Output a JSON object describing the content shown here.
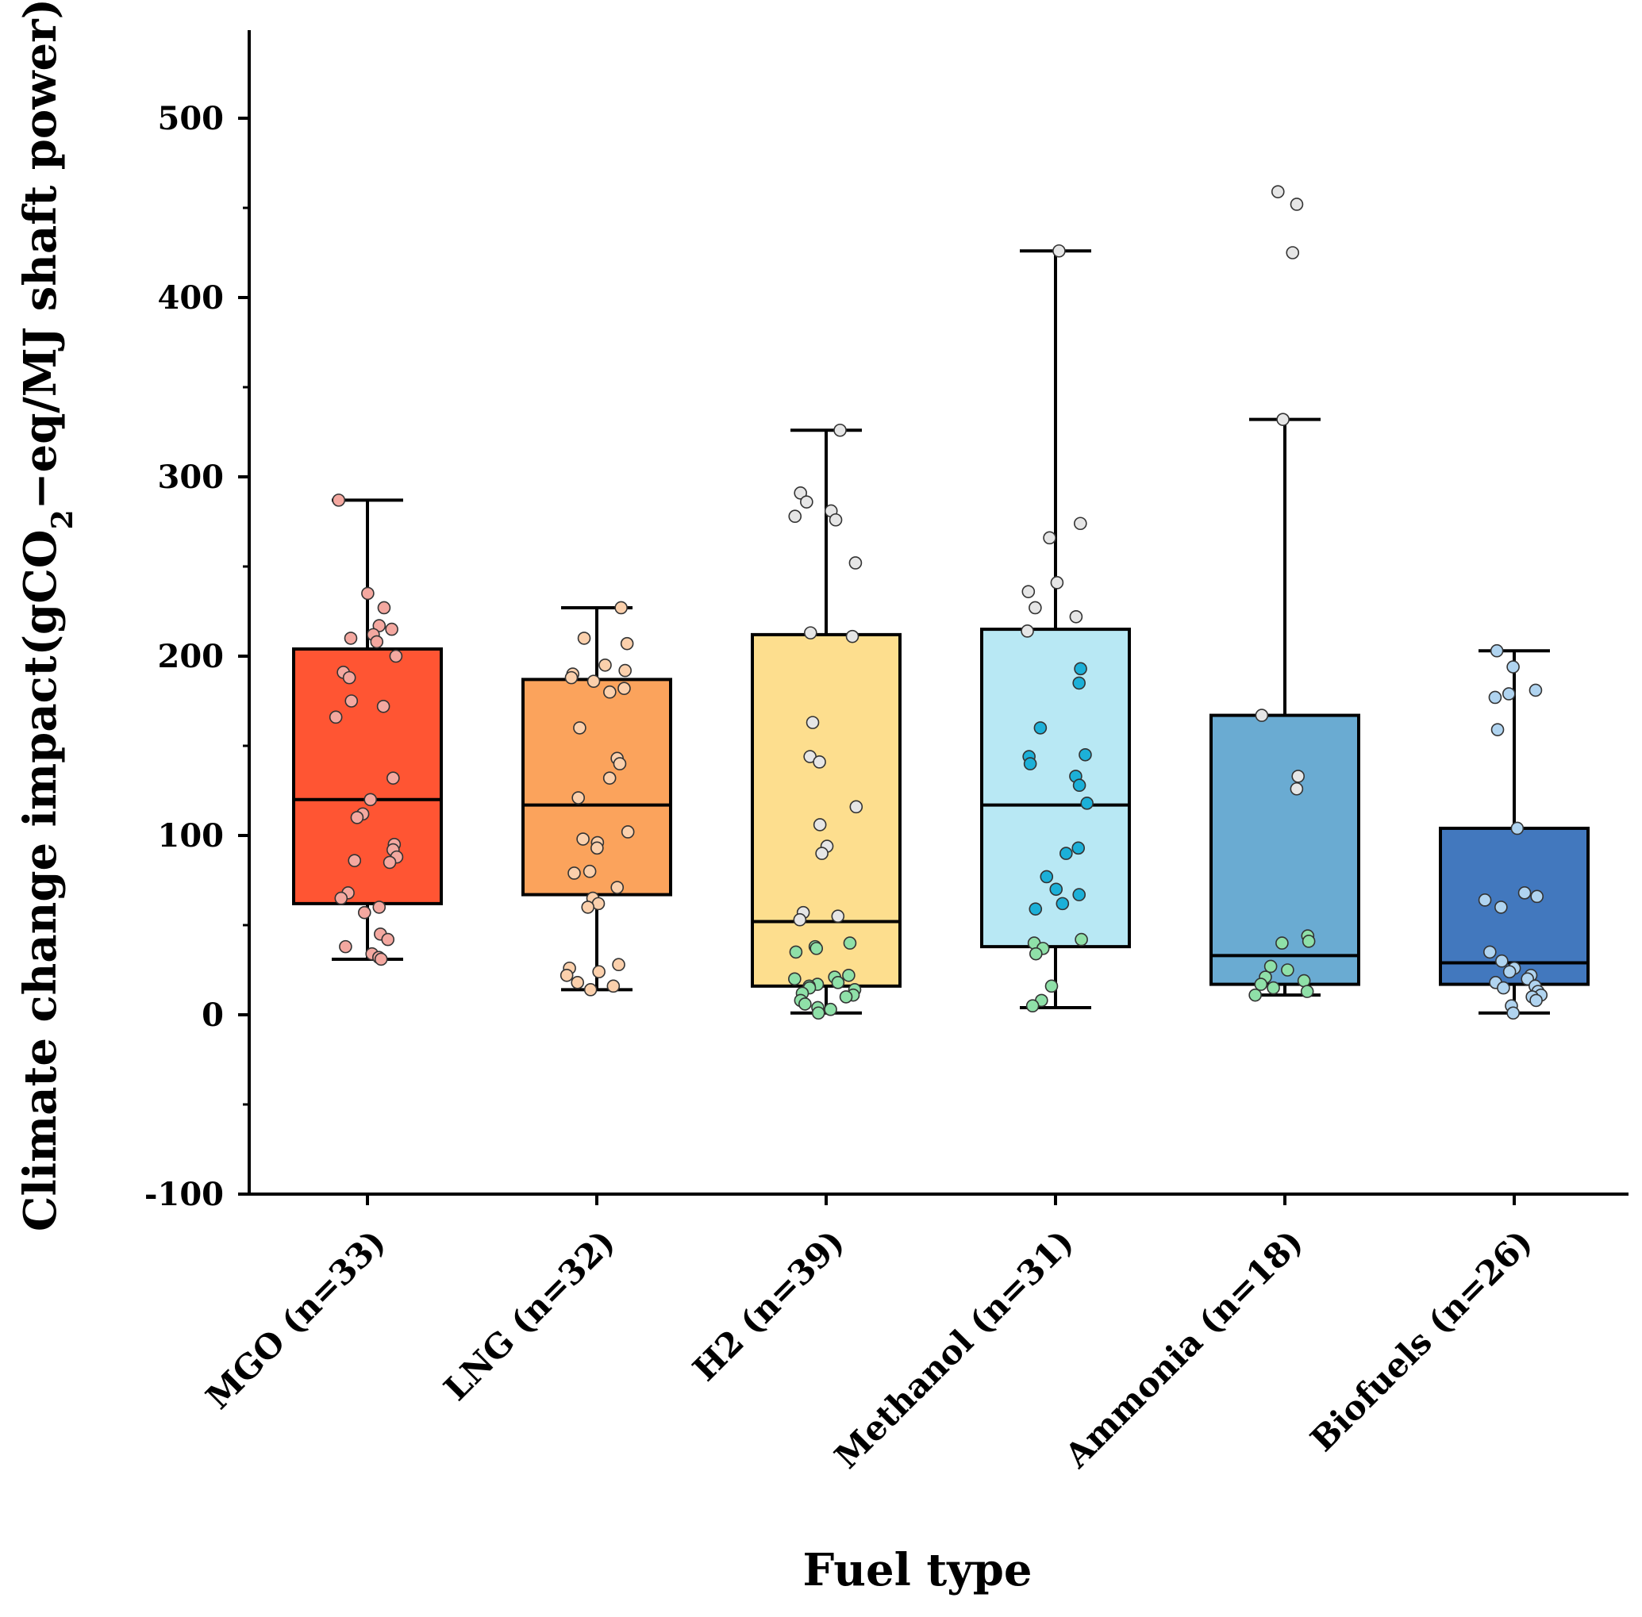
{
  "chart_data": {
    "type": "box",
    "title": "",
    "xlabel": "Fuel type",
    "ylabel": {
      "before": "Climate change impact(gCO",
      "subscript": "2",
      "after": "−eq/MJ shaft power)"
    },
    "ylim": [
      -100,
      550
    ],
    "yticks": [
      -100,
      0,
      100,
      200,
      300,
      400,
      500
    ],
    "grid": false,
    "categories": [
      {
        "label": "MGO (n=33)",
        "color": "#FF5533",
        "whisker_low": 31,
        "q1": 62,
        "median": 120,
        "q3": 204,
        "whisker_high": 287,
        "points": [
          {
            "v": 287,
            "c": "#F4A8A0"
          },
          {
            "v": 235,
            "c": "#F4A8A0"
          },
          {
            "v": 227,
            "c": "#F4A8A0"
          },
          {
            "v": 217,
            "c": "#F4A8A0"
          },
          {
            "v": 215,
            "c": "#F4A8A0"
          },
          {
            "v": 212,
            "c": "#F4A8A0"
          },
          {
            "v": 210,
            "c": "#F4A8A0"
          },
          {
            "v": 208,
            "c": "#F4A8A0"
          },
          {
            "v": 200,
            "c": "#F4A8A0"
          },
          {
            "v": 191,
            "c": "#F4A8A0"
          },
          {
            "v": 188,
            "c": "#F4A8A0"
          },
          {
            "v": 175,
            "c": "#F4A8A0"
          },
          {
            "v": 172,
            "c": "#F4A8A0"
          },
          {
            "v": 166,
            "c": "#F4A8A0"
          },
          {
            "v": 132,
            "c": "#F4A8A0"
          },
          {
            "v": 120,
            "c": "#F4A8A0"
          },
          {
            "v": 112,
            "c": "#F4A8A0"
          },
          {
            "v": 110,
            "c": "#F4A8A0"
          },
          {
            "v": 95,
            "c": "#F4A8A0"
          },
          {
            "v": 92,
            "c": "#F4A8A0"
          },
          {
            "v": 88,
            "c": "#F4A8A0"
          },
          {
            "v": 86,
            "c": "#F4A8A0"
          },
          {
            "v": 85,
            "c": "#F4A8A0"
          },
          {
            "v": 68,
            "c": "#F4A8A0"
          },
          {
            "v": 65,
            "c": "#F4A8A0"
          },
          {
            "v": 60,
            "c": "#F4A8A0"
          },
          {
            "v": 57,
            "c": "#F4A8A0"
          },
          {
            "v": 45,
            "c": "#F4A8A0"
          },
          {
            "v": 42,
            "c": "#F4A8A0"
          },
          {
            "v": 38,
            "c": "#F4A8A0"
          },
          {
            "v": 34,
            "c": "#F4A8A0"
          },
          {
            "v": 32,
            "c": "#F4A8A0"
          },
          {
            "v": 31,
            "c": "#F4A8A0"
          }
        ]
      },
      {
        "label": "LNG (n=32)",
        "color": "#FBA35C",
        "whisker_low": 14,
        "q1": 67,
        "median": 117,
        "q3": 187,
        "whisker_high": 227,
        "points": [
          {
            "v": 227,
            "c": "#FBD0AC"
          },
          {
            "v": 210,
            "c": "#FBD0AC"
          },
          {
            "v": 207,
            "c": "#FBD0AC"
          },
          {
            "v": 195,
            "c": "#FBD0AC"
          },
          {
            "v": 192,
            "c": "#FBD0AC"
          },
          {
            "v": 190,
            "c": "#FBD0AC"
          },
          {
            "v": 188,
            "c": "#FBD0AC"
          },
          {
            "v": 186,
            "c": "#FBD0AC"
          },
          {
            "v": 182,
            "c": "#FBD0AC"
          },
          {
            "v": 180,
            "c": "#FBD0AC"
          },
          {
            "v": 160,
            "c": "#FBD0AC"
          },
          {
            "v": 143,
            "c": "#FBD0AC"
          },
          {
            "v": 140,
            "c": "#FBD0AC"
          },
          {
            "v": 132,
            "c": "#FBD0AC"
          },
          {
            "v": 121,
            "c": "#FBD0AC"
          },
          {
            "v": 102,
            "c": "#FBD0AC"
          },
          {
            "v": 98,
            "c": "#FBD0AC"
          },
          {
            "v": 96,
            "c": "#FBD0AC"
          },
          {
            "v": 93,
            "c": "#FBD0AC"
          },
          {
            "v": 80,
            "c": "#FBD0AC"
          },
          {
            "v": 79,
            "c": "#FBD0AC"
          },
          {
            "v": 71,
            "c": "#FBD0AC"
          },
          {
            "v": 65,
            "c": "#FBD0AC"
          },
          {
            "v": 62,
            "c": "#FBD0AC"
          },
          {
            "v": 60,
            "c": "#FBD0AC"
          },
          {
            "v": 28,
            "c": "#FBD0AC"
          },
          {
            "v": 26,
            "c": "#FBD0AC"
          },
          {
            "v": 24,
            "c": "#FBD0AC"
          },
          {
            "v": 22,
            "c": "#FBD0AC"
          },
          {
            "v": 18,
            "c": "#FBD0AC"
          },
          {
            "v": 16,
            "c": "#FBD0AC"
          },
          {
            "v": 14,
            "c": "#FBD0AC"
          }
        ]
      },
      {
        "label": "H2 (n=39)",
        "color": "#FDDE8E",
        "whisker_low": 1,
        "q1": 16,
        "median": 52,
        "q3": 212,
        "whisker_high": 326,
        "points": [
          {
            "v": 326,
            "c": "#E6E6E6"
          },
          {
            "v": 291,
            "c": "#E6E6E6"
          },
          {
            "v": 286,
            "c": "#E6E6E6"
          },
          {
            "v": 281,
            "c": "#E6E6E6"
          },
          {
            "v": 278,
            "c": "#E6E6E6"
          },
          {
            "v": 276,
            "c": "#E6E6E6"
          },
          {
            "v": 252,
            "c": "#E6E6E6"
          },
          {
            "v": 213,
            "c": "#E6E6E6"
          },
          {
            "v": 211,
            "c": "#E6E6E6"
          },
          {
            "v": 163,
            "c": "#E6E6E6"
          },
          {
            "v": 144,
            "c": "#E6E6E6"
          },
          {
            "v": 141,
            "c": "#E6E6E6"
          },
          {
            "v": 116,
            "c": "#E6E6E6"
          },
          {
            "v": 106,
            "c": "#E6E6E6"
          },
          {
            "v": 94,
            "c": "#E6E6E6"
          },
          {
            "v": 90,
            "c": "#E6E6E6"
          },
          {
            "v": 57,
            "c": "#E6E6E6"
          },
          {
            "v": 55,
            "c": "#E6E6E6"
          },
          {
            "v": 53,
            "c": "#E6E6E6"
          },
          {
            "v": 40,
            "c": "#8FE0A8"
          },
          {
            "v": 38,
            "c": "#8FE0A8"
          },
          {
            "v": 37,
            "c": "#8FE0A8"
          },
          {
            "v": 35,
            "c": "#8FE0A8"
          },
          {
            "v": 22,
            "c": "#8FE0A8"
          },
          {
            "v": 21,
            "c": "#8FE0A8"
          },
          {
            "v": 20,
            "c": "#8FE0A8"
          },
          {
            "v": 18,
            "c": "#8FE0A8"
          },
          {
            "v": 17,
            "c": "#8FE0A8"
          },
          {
            "v": 16,
            "c": "#8FE0A8"
          },
          {
            "v": 15,
            "c": "#8FE0A8"
          },
          {
            "v": 14,
            "c": "#8FE0A8"
          },
          {
            "v": 12,
            "c": "#8FE0A8"
          },
          {
            "v": 11,
            "c": "#8FE0A8"
          },
          {
            "v": 10,
            "c": "#8FE0A8"
          },
          {
            "v": 8,
            "c": "#8FE0A8"
          },
          {
            "v": 6,
            "c": "#8FE0A8"
          },
          {
            "v": 4,
            "c": "#8FE0A8"
          },
          {
            "v": 3,
            "c": "#8FE0A8"
          },
          {
            "v": 1,
            "c": "#8FE0A8"
          }
        ]
      },
      {
        "label": "Methanol (n=31)",
        "color": "#B8E8F4",
        "whisker_low": 4,
        "q1": 38,
        "median": 117,
        "q3": 215,
        "whisker_high": 426,
        "points": [
          {
            "v": 426,
            "c": "#E6E6E6"
          },
          {
            "v": 274,
            "c": "#E6E6E6"
          },
          {
            "v": 266,
            "c": "#E6E6E6"
          },
          {
            "v": 241,
            "c": "#E6E6E6"
          },
          {
            "v": 236,
            "c": "#E6E6E6"
          },
          {
            "v": 227,
            "c": "#E6E6E6"
          },
          {
            "v": 222,
            "c": "#E6E6E6"
          },
          {
            "v": 214,
            "c": "#E6E6E6"
          },
          {
            "v": 193,
            "c": "#1CB0D8"
          },
          {
            "v": 185,
            "c": "#1CB0D8"
          },
          {
            "v": 160,
            "c": "#1CB0D8"
          },
          {
            "v": 145,
            "c": "#1CB0D8"
          },
          {
            "v": 144,
            "c": "#1CB0D8"
          },
          {
            "v": 140,
            "c": "#1CB0D8"
          },
          {
            "v": 133,
            "c": "#1CB0D8"
          },
          {
            "v": 128,
            "c": "#1CB0D8"
          },
          {
            "v": 118,
            "c": "#1CB0D8"
          },
          {
            "v": 93,
            "c": "#1CB0D8"
          },
          {
            "v": 90,
            "c": "#1CB0D8"
          },
          {
            "v": 77,
            "c": "#1CB0D8"
          },
          {
            "v": 70,
            "c": "#1CB0D8"
          },
          {
            "v": 67,
            "c": "#1CB0D8"
          },
          {
            "v": 62,
            "c": "#1CB0D8"
          },
          {
            "v": 59,
            "c": "#1CB0D8"
          },
          {
            "v": 42,
            "c": "#8FE0A8"
          },
          {
            "v": 40,
            "c": "#8FE0A8"
          },
          {
            "v": 37,
            "c": "#8FE0A8"
          },
          {
            "v": 34,
            "c": "#8FE0A8"
          },
          {
            "v": 16,
            "c": "#8FE0A8"
          },
          {
            "v": 8,
            "c": "#8FE0A8"
          },
          {
            "v": 5,
            "c": "#8FE0A8"
          }
        ]
      },
      {
        "label": "Ammonia (n=18)",
        "color": "#6AABD2",
        "whisker_low": 11,
        "q1": 17,
        "median": 33,
        "q3": 167,
        "whisker_high": 332,
        "points": [
          {
            "v": 459,
            "c": "#E6E6E6"
          },
          {
            "v": 452,
            "c": "#E6E6E6"
          },
          {
            "v": 425,
            "c": "#E6E6E6"
          },
          {
            "v": 332,
            "c": "#E6E6E6"
          },
          {
            "v": 167,
            "c": "#E6E6E6"
          },
          {
            "v": 133,
            "c": "#E6E6E6"
          },
          {
            "v": 126,
            "c": "#E6E6E6"
          },
          {
            "v": 44,
            "c": "#8FE0A8"
          },
          {
            "v": 41,
            "c": "#8FE0A8"
          },
          {
            "v": 40,
            "c": "#8FE0A8"
          },
          {
            "v": 27,
            "c": "#8FE0A8"
          },
          {
            "v": 25,
            "c": "#8FE0A8"
          },
          {
            "v": 21,
            "c": "#8FE0A8"
          },
          {
            "v": 19,
            "c": "#8FE0A8"
          },
          {
            "v": 17,
            "c": "#8FE0A8"
          },
          {
            "v": 15,
            "c": "#8FE0A8"
          },
          {
            "v": 13,
            "c": "#8FE0A8"
          },
          {
            "v": 11,
            "c": "#8FE0A8"
          }
        ]
      },
      {
        "label": "Biofuels (n=26)",
        "color": "#4278BE",
        "whisker_low": 1,
        "q1": 17,
        "median": 29,
        "q3": 104,
        "whisker_high": 203,
        "points": [
          {
            "v": 203,
            "c": "#B0D4F0"
          },
          {
            "v": 194,
            "c": "#B0D4F0"
          },
          {
            "v": 181,
            "c": "#B0D4F0"
          },
          {
            "v": 179,
            "c": "#B0D4F0"
          },
          {
            "v": 177,
            "c": "#B0D4F0"
          },
          {
            "v": 159,
            "c": "#B0D4F0"
          },
          {
            "v": 104,
            "c": "#B0D4F0"
          },
          {
            "v": 68,
            "c": "#B0D4F0"
          },
          {
            "v": 66,
            "c": "#B0D4F0"
          },
          {
            "v": 64,
            "c": "#B0D4F0"
          },
          {
            "v": 60,
            "c": "#B0D4F0"
          },
          {
            "v": 35,
            "c": "#B0D4F0"
          },
          {
            "v": 30,
            "c": "#B0D4F0"
          },
          {
            "v": 26,
            "c": "#B0D4F0"
          },
          {
            "v": 24,
            "c": "#B0D4F0"
          },
          {
            "v": 22,
            "c": "#B0D4F0"
          },
          {
            "v": 20,
            "c": "#B0D4F0"
          },
          {
            "v": 18,
            "c": "#B0D4F0"
          },
          {
            "v": 16,
            "c": "#B0D4F0"
          },
          {
            "v": 15,
            "c": "#B0D4F0"
          },
          {
            "v": 13,
            "c": "#B0D4F0"
          },
          {
            "v": 11,
            "c": "#B0D4F0"
          },
          {
            "v": 10,
            "c": "#B0D4F0"
          },
          {
            "v": 8,
            "c": "#B0D4F0"
          },
          {
            "v": 5,
            "c": "#B0D4F0"
          },
          {
            "v": 1,
            "c": "#B0D4F0"
          }
        ]
      }
    ]
  }
}
